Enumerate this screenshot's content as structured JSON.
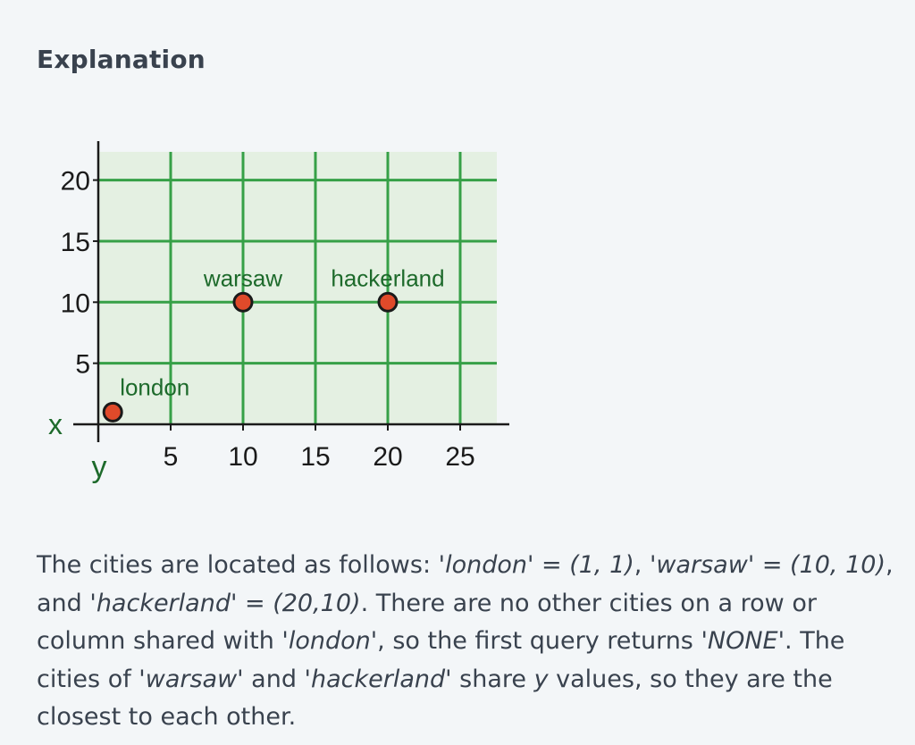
{
  "heading": "Explanation",
  "chart_data": {
    "type": "scatter",
    "x_ticks": [
      5,
      10,
      15,
      20,
      25
    ],
    "y_ticks": [
      5,
      10,
      15,
      20
    ],
    "x_axis_label": "x",
    "y_axis_label": "y",
    "xlim": [
      0,
      27
    ],
    "ylim": [
      0,
      21
    ],
    "grid": true,
    "points": [
      {
        "label": "london",
        "x": 1,
        "y": 1
      },
      {
        "label": "warsaw",
        "x": 10,
        "y": 10
      },
      {
        "label": "hackerland",
        "x": 20,
        "y": 10
      }
    ],
    "colors": {
      "plot_background": "#e4f0e2",
      "grid": "#36a047",
      "point_fill": "#e04a2a",
      "point_stroke": "#1a1a1a",
      "label": "#1d6a2b",
      "axis": "#1a1a1a"
    }
  },
  "explanation": {
    "s01": "The cities are located as follows: '",
    "s02": "london",
    "s03": "' = ",
    "s04": "(1, 1)",
    "s05": ", '",
    "s06": "warsaw",
    "s07": "' = ",
    "s08": "(10, 10)",
    "s09": ", and '",
    "s10": "hackerland",
    "s11": "' = ",
    "s12": "(20,10)",
    "s13": ". There are no other cities on a row or column shared with '",
    "s14": "london",
    "s15": "', so the first query returns '",
    "s16": "NONE",
    "s17": "'. The cities of '",
    "s18": "warsaw",
    "s19": "' and '",
    "s20": "hackerland",
    "s21": "' share ",
    "s22": "y",
    "s23": " values, so they are the closest to each other."
  }
}
